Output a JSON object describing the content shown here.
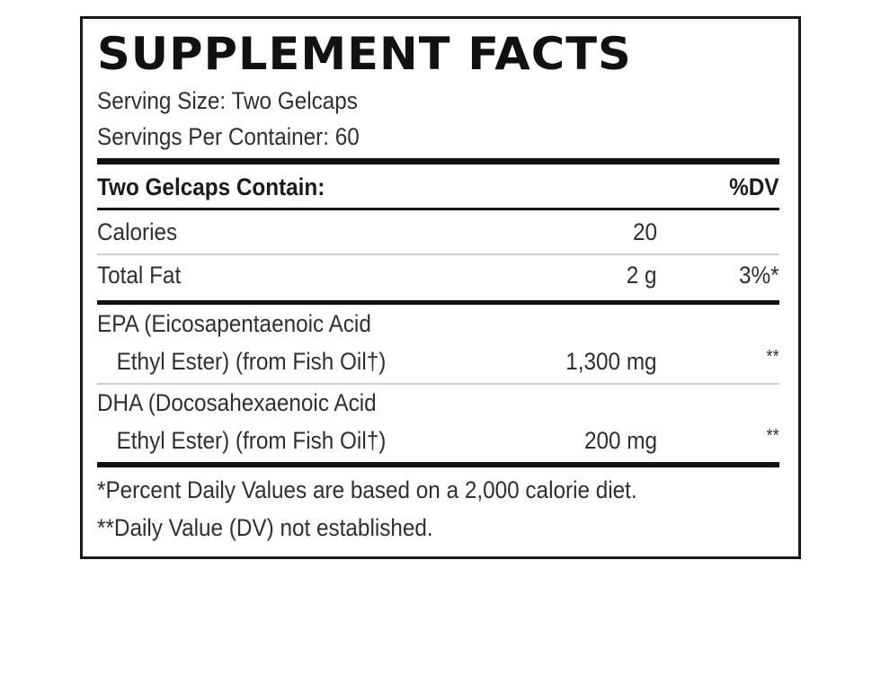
{
  "label": {
    "title": "SUPPLEMENT FACTS",
    "serving_size": "Serving Size: Two Gelcaps",
    "servings_per_container": "Servings Per Container: 60",
    "header": {
      "left": "Two Gelcaps Contain:",
      "right": "%DV"
    },
    "rows": [
      {
        "line1": "Calories",
        "amount": "20",
        "dv": ""
      },
      {
        "line1": "Total Fat",
        "amount": "2 g",
        "dv": "3%*"
      },
      {
        "line1": "EPA (Eicosapentaenoic Acid",
        "line2": "Ethyl Ester) (from Fish Oil†)",
        "amount": "1,300 mg",
        "dv": "**"
      },
      {
        "line1": "DHA (Docosahexaenoic Acid",
        "line2": "Ethyl Ester) (from Fish Oil†)",
        "amount": "200 mg",
        "dv": "**"
      }
    ],
    "footnotes": [
      "*Percent Daily Values are based on a 2,000 calorie diet.",
      "**Daily Value (DV) not established."
    ]
  }
}
